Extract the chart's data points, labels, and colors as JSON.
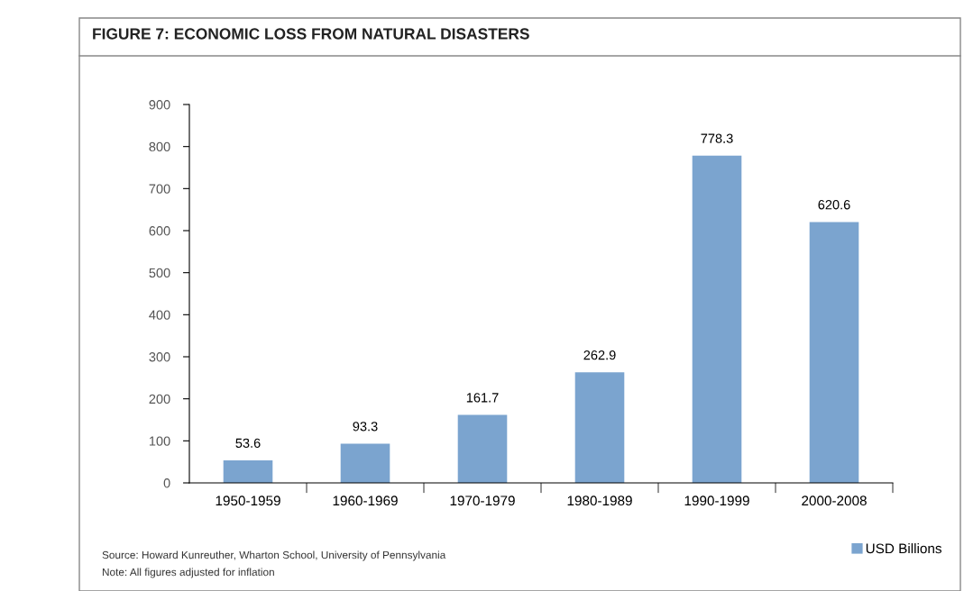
{
  "chart_data": {
    "type": "bar",
    "title": "FIGURE 7: ECONOMIC LOSS FROM NATURAL DISASTERS",
    "categories": [
      "1950-1959",
      "1960-1969",
      "1970-1979",
      "1980-1989",
      "1990-1999",
      "2000-2008"
    ],
    "series": [
      {
        "name": "USD Billions",
        "color": "#7ba4cf",
        "values": [
          53.6,
          93.3,
          161.7,
          262.9,
          778.3,
          620.6
        ]
      }
    ],
    "ylim": [
      0,
      900
    ],
    "yticks": [
      0,
      100,
      200,
      300,
      400,
      500,
      600,
      700,
      800,
      900
    ],
    "data_labels": true,
    "grid": false,
    "legend": "bottom right",
    "annotations": [
      "Source: Howard Kunreuther, Wharton School, University of Pennsylvania",
      "Note: All figures adjusted for inflation"
    ]
  }
}
